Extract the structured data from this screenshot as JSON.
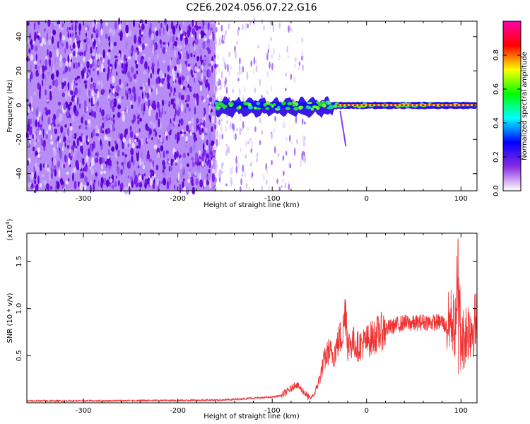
{
  "title": "C2E6.2024.056.07.22.G16",
  "colors": {
    "line": "#ee3333",
    "spectro_bg": "#8a3cf0",
    "ridge": "#ee3333"
  },
  "chart_data": [
    {
      "type": "heatmap",
      "title": "C2E6.2024.056.07.22.G16",
      "xlabel": "Height of straight line (km)",
      "ylabel": "Frequency (Hz)",
      "xlim": [
        -360,
        117
      ],
      "ylim": [
        -50,
        49
      ],
      "x_ticks": [
        -300,
        -200,
        -100,
        0,
        100
      ],
      "x_tick_labels": [
        "-300",
        "-200",
        "-100",
        "0",
        "100"
      ],
      "y_ticks": [
        -40,
        -20,
        0,
        20,
        40
      ],
      "y_tick_labels": [
        "-40",
        "-20",
        "0",
        "20",
        "40"
      ],
      "ridge": {
        "frequency": 0,
        "x_start": -160,
        "x_end": 117
      },
      "noise_region": {
        "dense_until": -160,
        "sparse_until": -65
      },
      "colorbar": {
        "label": "Normalized spectral amplitude",
        "range": [
          0.0,
          1.0
        ],
        "ticks": [
          0.0,
          0.2,
          0.4,
          0.6,
          0.8
        ],
        "tick_labels": [
          "0.0",
          "0.2",
          "0.4",
          "0.6",
          "0.8"
        ],
        "colormap": [
          "#ffffff",
          "#8a2be2",
          "#0000ff",
          "#00ffff",
          "#00ff00",
          "#ffff00",
          "#ff0000",
          "#ff00aa"
        ]
      }
    },
    {
      "type": "line",
      "xlabel": "Height of straight line (km)",
      "ylabel": "SNR (10 * v/v)",
      "y_multiplier": "(x10",
      "y_multiplier_exp": "4",
      "y_multiplier_close": ")",
      "xlim": [
        -360,
        117
      ],
      "ylim": [
        0,
        1.8
      ],
      "x_ticks": [
        -300,
        -200,
        -100,
        0,
        100
      ],
      "x_tick_labels": [
        "-300",
        "-200",
        "-100",
        "0",
        "100"
      ],
      "y_ticks": [
        0.5,
        1.0,
        1.5
      ],
      "y_tick_labels": [
        "0.5",
        "1.0",
        "1.5"
      ],
      "series": [
        {
          "color": "#ee3333",
          "x": [
            -360,
            -300,
            -200,
            -150,
            -120,
            -100,
            -90,
            -80,
            -75,
            -70,
            -65,
            -60,
            -55,
            -50,
            -45,
            -40,
            -35,
            -30,
            -25,
            -22,
            -20,
            -15,
            -10,
            -5,
            0,
            10,
            20,
            30,
            40,
            50,
            60,
            70,
            80,
            85,
            90,
            95,
            97,
            100,
            105,
            110,
            117
          ],
          "y": [
            0.02,
            0.02,
            0.025,
            0.03,
            0.05,
            0.06,
            0.08,
            0.15,
            0.2,
            0.15,
            0.1,
            0.04,
            0.1,
            0.25,
            0.45,
            0.55,
            0.5,
            0.65,
            0.75,
            1.05,
            0.6,
            0.65,
            0.6,
            0.62,
            0.65,
            0.72,
            0.78,
            0.82,
            0.85,
            0.84,
            0.86,
            0.85,
            0.86,
            0.8,
            0.9,
            0.75,
            1.6,
            0.6,
            0.75,
            0.8,
            0.85
          ]
        }
      ]
    }
  ]
}
